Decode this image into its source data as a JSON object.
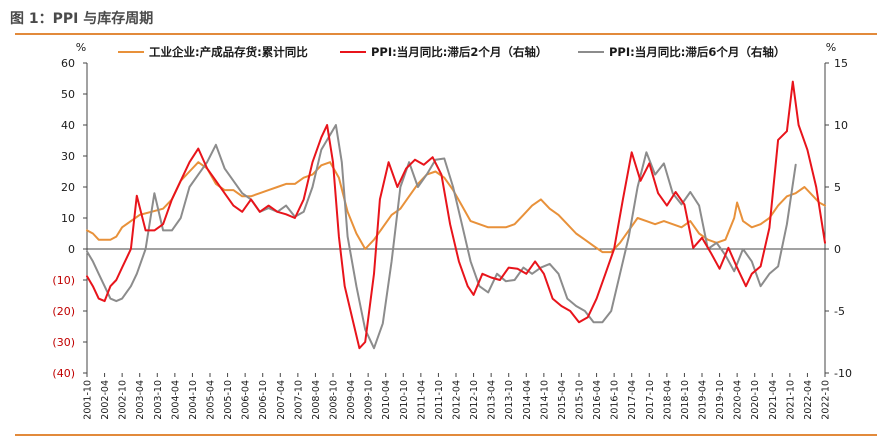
{
  "figure": {
    "title": "图 1：PPI 与库存周期"
  },
  "chart_data": {
    "type": "line",
    "left_unit": "%",
    "right_unit": "%",
    "left_ylim": [
      -40,
      60
    ],
    "left_ticks": [
      60,
      50,
      40,
      30,
      20,
      10,
      0,
      -10,
      -20,
      -30,
      -40
    ],
    "left_tick_labels": [
      "60",
      "50",
      "40",
      "30",
      "20",
      "10",
      "0",
      "(10)",
      "(20)",
      "(30)",
      "(40)"
    ],
    "left_tick_colors": [
      "#1a1a1a",
      "#1a1a1a",
      "#1a1a1a",
      "#1a1a1a",
      "#1a1a1a",
      "#1a1a1a",
      "#1a1a1a",
      "#c00000",
      "#c00000",
      "#c00000",
      "#c00000"
    ],
    "right_ylim": [
      -10,
      15
    ],
    "right_ticks": [
      15,
      10,
      5,
      0,
      -5,
      -10
    ],
    "right_tick_labels": [
      "15",
      "10",
      "5",
      "0",
      "-5",
      "-10"
    ],
    "x_start": "2001-10",
    "x_end": "2022-10",
    "x_tick_labels": [
      "2001-10",
      "2002-04",
      "2002-10",
      "2003-04",
      "2003-10",
      "2004-04",
      "2004-10",
      "2005-04",
      "2005-10",
      "2006-04",
      "2006-10",
      "2007-04",
      "2007-10",
      "2008-04",
      "2008-10",
      "2009-04",
      "2009-10",
      "2010-04",
      "2010-10",
      "2011-04",
      "2011-10",
      "2012-04",
      "2012-10",
      "2013-04",
      "2013-10",
      "2014-04",
      "2014-10",
      "2015-04",
      "2015-10",
      "2016-04",
      "2016-10",
      "2017-04",
      "2017-10",
      "2018-04",
      "2018-10",
      "2019-04",
      "2019-10",
      "2020-04",
      "2020-10",
      "2021-04",
      "2021-10",
      "2022-04",
      "2022-10"
    ],
    "legend_position": "top",
    "series": [
      {
        "name": "工业企业:产成品存货:累计同比",
        "axis": "left",
        "color": "#e8913a",
        "points": [
          [
            "2001-10",
            6
          ],
          [
            "2001-12",
            5
          ],
          [
            "2002-02",
            3
          ],
          [
            "2002-04",
            3
          ],
          [
            "2002-06",
            3
          ],
          [
            "2002-08",
            4
          ],
          [
            "2002-10",
            7
          ],
          [
            "2003-01",
            9
          ],
          [
            "2003-04",
            11
          ],
          [
            "2003-08",
            12
          ],
          [
            "2003-12",
            13
          ],
          [
            "2004-03",
            16
          ],
          [
            "2004-06",
            22
          ],
          [
            "2004-09",
            25
          ],
          [
            "2004-12",
            28
          ],
          [
            "2005-03",
            26
          ],
          [
            "2005-06",
            21
          ],
          [
            "2005-09",
            19
          ],
          [
            "2005-12",
            19
          ],
          [
            "2006-03",
            17
          ],
          [
            "2006-06",
            17
          ],
          [
            "2006-09",
            18
          ],
          [
            "2006-12",
            19
          ],
          [
            "2007-03",
            20
          ],
          [
            "2007-06",
            21
          ],
          [
            "2007-09",
            21
          ],
          [
            "2007-12",
            23
          ],
          [
            "2008-03",
            24
          ],
          [
            "2008-06",
            27
          ],
          [
            "2008-09",
            28
          ],
          [
            "2008-12",
            23
          ],
          [
            "2009-03",
            12
          ],
          [
            "2009-06",
            5
          ],
          [
            "2009-09",
            0
          ],
          [
            "2009-12",
            3
          ],
          [
            "2010-03",
            7
          ],
          [
            "2010-06",
            11
          ],
          [
            "2010-09",
            13
          ],
          [
            "2010-12",
            17
          ],
          [
            "2011-03",
            21
          ],
          [
            "2011-06",
            24
          ],
          [
            "2011-09",
            25
          ],
          [
            "2011-12",
            23
          ],
          [
            "2012-03",
            19
          ],
          [
            "2012-06",
            14
          ],
          [
            "2012-09",
            9
          ],
          [
            "2012-12",
            8
          ],
          [
            "2013-03",
            7
          ],
          [
            "2013-06",
            7
          ],
          [
            "2013-09",
            7
          ],
          [
            "2013-12",
            8
          ],
          [
            "2014-03",
            11
          ],
          [
            "2014-06",
            14
          ],
          [
            "2014-09",
            16
          ],
          [
            "2014-12",
            13
          ],
          [
            "2015-03",
            11
          ],
          [
            "2015-06",
            8
          ],
          [
            "2015-09",
            5
          ],
          [
            "2015-12",
            3
          ],
          [
            "2016-03",
            1
          ],
          [
            "2016-06",
            -1
          ],
          [
            "2016-09",
            -1
          ],
          [
            "2016-12",
            2
          ],
          [
            "2017-03",
            6
          ],
          [
            "2017-06",
            10
          ],
          [
            "2017-09",
            9
          ],
          [
            "2017-12",
            8
          ],
          [
            "2018-03",
            9
          ],
          [
            "2018-06",
            8
          ],
          [
            "2018-09",
            7
          ],
          [
            "2018-12",
            9
          ],
          [
            "2019-03",
            5
          ],
          [
            "2019-06",
            3
          ],
          [
            "2019-09",
            2
          ],
          [
            "2019-12",
            3
          ],
          [
            "2020-03",
            10
          ],
          [
            "2020-04",
            15
          ],
          [
            "2020-06",
            9
          ],
          [
            "2020-09",
            7
          ],
          [
            "2020-12",
            8
          ],
          [
            "2021-03",
            10
          ],
          [
            "2021-06",
            14
          ],
          [
            "2021-09",
            17
          ],
          [
            "2021-12",
            18
          ],
          [
            "2022-03",
            20
          ],
          [
            "2022-06",
            17
          ],
          [
            "2022-08",
            15
          ],
          [
            "2022-10",
            14
          ]
        ]
      },
      {
        "name": "PPI:当月同比:滞后2个月（右轴）",
        "axis": "right",
        "color": "#e8141b",
        "points": [
          [
            "2001-10",
            -2.2
          ],
          [
            "2001-12",
            -3
          ],
          [
            "2002-02",
            -4
          ],
          [
            "2002-04",
            -4.2
          ],
          [
            "2002-06",
            -3
          ],
          [
            "2002-08",
            -2.5
          ],
          [
            "2002-10",
            -1.5
          ],
          [
            "2003-01",
            0
          ],
          [
            "2003-03",
            4.3
          ],
          [
            "2003-06",
            1.5
          ],
          [
            "2003-09",
            1.5
          ],
          [
            "2003-12",
            2
          ],
          [
            "2004-03",
            4
          ],
          [
            "2004-06",
            5.5
          ],
          [
            "2004-09",
            7
          ],
          [
            "2004-12",
            8.1
          ],
          [
            "2005-03",
            6.5
          ],
          [
            "2005-06",
            5.5
          ],
          [
            "2005-09",
            4.5
          ],
          [
            "2005-12",
            3.5
          ],
          [
            "2006-03",
            3
          ],
          [
            "2006-06",
            4
          ],
          [
            "2006-09",
            3
          ],
          [
            "2006-12",
            3.5
          ],
          [
            "2007-03",
            3
          ],
          [
            "2007-06",
            2.8
          ],
          [
            "2007-09",
            2.5
          ],
          [
            "2007-12",
            4
          ],
          [
            "2008-03",
            7
          ],
          [
            "2008-06",
            9
          ],
          [
            "2008-08",
            10
          ],
          [
            "2008-10",
            7
          ],
          [
            "2008-12",
            1
          ],
          [
            "2009-02",
            -3
          ],
          [
            "2009-05",
            -6
          ],
          [
            "2009-07",
            -8
          ],
          [
            "2009-09",
            -7.5
          ],
          [
            "2009-12",
            -2
          ],
          [
            "2010-02",
            4
          ],
          [
            "2010-05",
            7
          ],
          [
            "2010-08",
            5
          ],
          [
            "2010-11",
            6.5
          ],
          [
            "2011-02",
            7.2
          ],
          [
            "2011-05",
            6.8
          ],
          [
            "2011-08",
            7.4
          ],
          [
            "2011-11",
            6
          ],
          [
            "2012-02",
            2
          ],
          [
            "2012-05",
            -1
          ],
          [
            "2012-08",
            -3
          ],
          [
            "2012-10",
            -3.7
          ],
          [
            "2013-01",
            -2
          ],
          [
            "2013-04",
            -2.3
          ],
          [
            "2013-07",
            -2.5
          ],
          [
            "2013-10",
            -1.5
          ],
          [
            "2014-01",
            -1.6
          ],
          [
            "2014-04",
            -2
          ],
          [
            "2014-07",
            -1
          ],
          [
            "2014-10",
            -2
          ],
          [
            "2015-01",
            -4
          ],
          [
            "2015-04",
            -4.6
          ],
          [
            "2015-07",
            -5
          ],
          [
            "2015-10",
            -5.9
          ],
          [
            "2016-01",
            -5.5
          ],
          [
            "2016-04",
            -4
          ],
          [
            "2016-07",
            -2
          ],
          [
            "2016-10",
            0
          ],
          [
            "2017-01",
            4
          ],
          [
            "2017-04",
            7.8
          ],
          [
            "2017-07",
            5.5
          ],
          [
            "2017-10",
            6.9
          ],
          [
            "2018-01",
            4.5
          ],
          [
            "2018-04",
            3.5
          ],
          [
            "2018-07",
            4.6
          ],
          [
            "2018-10",
            3.6
          ],
          [
            "2019-01",
            0.1
          ],
          [
            "2019-04",
            0.9
          ],
          [
            "2019-07",
            -0.3
          ],
          [
            "2019-10",
            -1.6
          ],
          [
            "2020-01",
            0.1
          ],
          [
            "2020-04",
            -1.5
          ],
          [
            "2020-07",
            -3
          ],
          [
            "2020-09",
            -2
          ],
          [
            "2020-12",
            -1.4
          ],
          [
            "2021-03",
            1.7
          ],
          [
            "2021-06",
            8.8
          ],
          [
            "2021-09",
            9.5
          ],
          [
            "2021-11",
            13.5
          ],
          [
            "2022-01",
            10
          ],
          [
            "2022-04",
            8
          ],
          [
            "2022-07",
            5
          ],
          [
            "2022-10",
            0.5
          ]
        ]
      },
      {
        "name": "PPI:当月同比:滞后6个月（右轴）",
        "axis": "right",
        "color": "#8c8c8c",
        "points": [
          [
            "2001-10",
            -0.2
          ],
          [
            "2001-12",
            -1
          ],
          [
            "2002-02",
            -2
          ],
          [
            "2002-04",
            -3
          ],
          [
            "2002-06",
            -4
          ],
          [
            "2002-08",
            -4.2
          ],
          [
            "2002-10",
            -4
          ],
          [
            "2003-01",
            -3
          ],
          [
            "2003-03",
            -2
          ],
          [
            "2003-06",
            0
          ],
          [
            "2003-09",
            4.5
          ],
          [
            "2003-12",
            1.5
          ],
          [
            "2004-03",
            1.5
          ],
          [
            "2004-06",
            2.5
          ],
          [
            "2004-09",
            5
          ],
          [
            "2004-12",
            6
          ],
          [
            "2005-03",
            7
          ],
          [
            "2005-06",
            8.4
          ],
          [
            "2005-09",
            6.5
          ],
          [
            "2005-12",
            5.5
          ],
          [
            "2006-03",
            4.5
          ],
          [
            "2006-06",
            4
          ],
          [
            "2006-09",
            3
          ],
          [
            "2006-12",
            3.3
          ],
          [
            "2007-03",
            3
          ],
          [
            "2007-06",
            3.5
          ],
          [
            "2007-09",
            2.6
          ],
          [
            "2007-12",
            3
          ],
          [
            "2008-03",
            5
          ],
          [
            "2008-06",
            8
          ],
          [
            "2008-09",
            9.2
          ],
          [
            "2008-11",
            10
          ],
          [
            "2009-01",
            7
          ],
          [
            "2009-03",
            1
          ],
          [
            "2009-06",
            -3
          ],
          [
            "2009-09",
            -6.5
          ],
          [
            "2009-12",
            -8
          ],
          [
            "2010-03",
            -6
          ],
          [
            "2010-06",
            -1
          ],
          [
            "2010-09",
            5
          ],
          [
            "2010-12",
            7
          ],
          [
            "2011-03",
            5
          ],
          [
            "2011-06",
            6
          ],
          [
            "2011-09",
            7.2
          ],
          [
            "2011-12",
            7.3
          ],
          [
            "2012-03",
            5
          ],
          [
            "2012-06",
            2
          ],
          [
            "2012-09",
            -1
          ],
          [
            "2012-12",
            -3
          ],
          [
            "2013-03",
            -3.5
          ],
          [
            "2013-06",
            -2
          ],
          [
            "2013-09",
            -2.6
          ],
          [
            "2013-12",
            -2.5
          ],
          [
            "2014-03",
            -1.5
          ],
          [
            "2014-06",
            -2
          ],
          [
            "2014-09",
            -1.5
          ],
          [
            "2014-12",
            -1.2
          ],
          [
            "2015-03",
            -2
          ],
          [
            "2015-06",
            -4
          ],
          [
            "2015-09",
            -4.6
          ],
          [
            "2015-12",
            -5
          ],
          [
            "2016-03",
            -5.9
          ],
          [
            "2016-06",
            -5.9
          ],
          [
            "2016-09",
            -5
          ],
          [
            "2016-12",
            -2
          ],
          [
            "2017-03",
            1
          ],
          [
            "2017-06",
            5
          ],
          [
            "2017-09",
            7.8
          ],
          [
            "2017-12",
            6
          ],
          [
            "2018-03",
            6.9
          ],
          [
            "2018-06",
            4.5
          ],
          [
            "2018-09",
            3.6
          ],
          [
            "2018-12",
            4.6
          ],
          [
            "2019-03",
            3.5
          ],
          [
            "2019-06",
            0
          ],
          [
            "2019-09",
            0.5
          ],
          [
            "2019-12",
            -0.5
          ],
          [
            "2020-03",
            -1.8
          ],
          [
            "2020-06",
            0
          ],
          [
            "2020-09",
            -1
          ],
          [
            "2020-12",
            -3
          ],
          [
            "2021-03",
            -2
          ],
          [
            "2021-06",
            -1.4
          ],
          [
            "2021-09",
            2
          ],
          [
            "2021-12",
            6.8
          ]
        ]
      }
    ]
  }
}
